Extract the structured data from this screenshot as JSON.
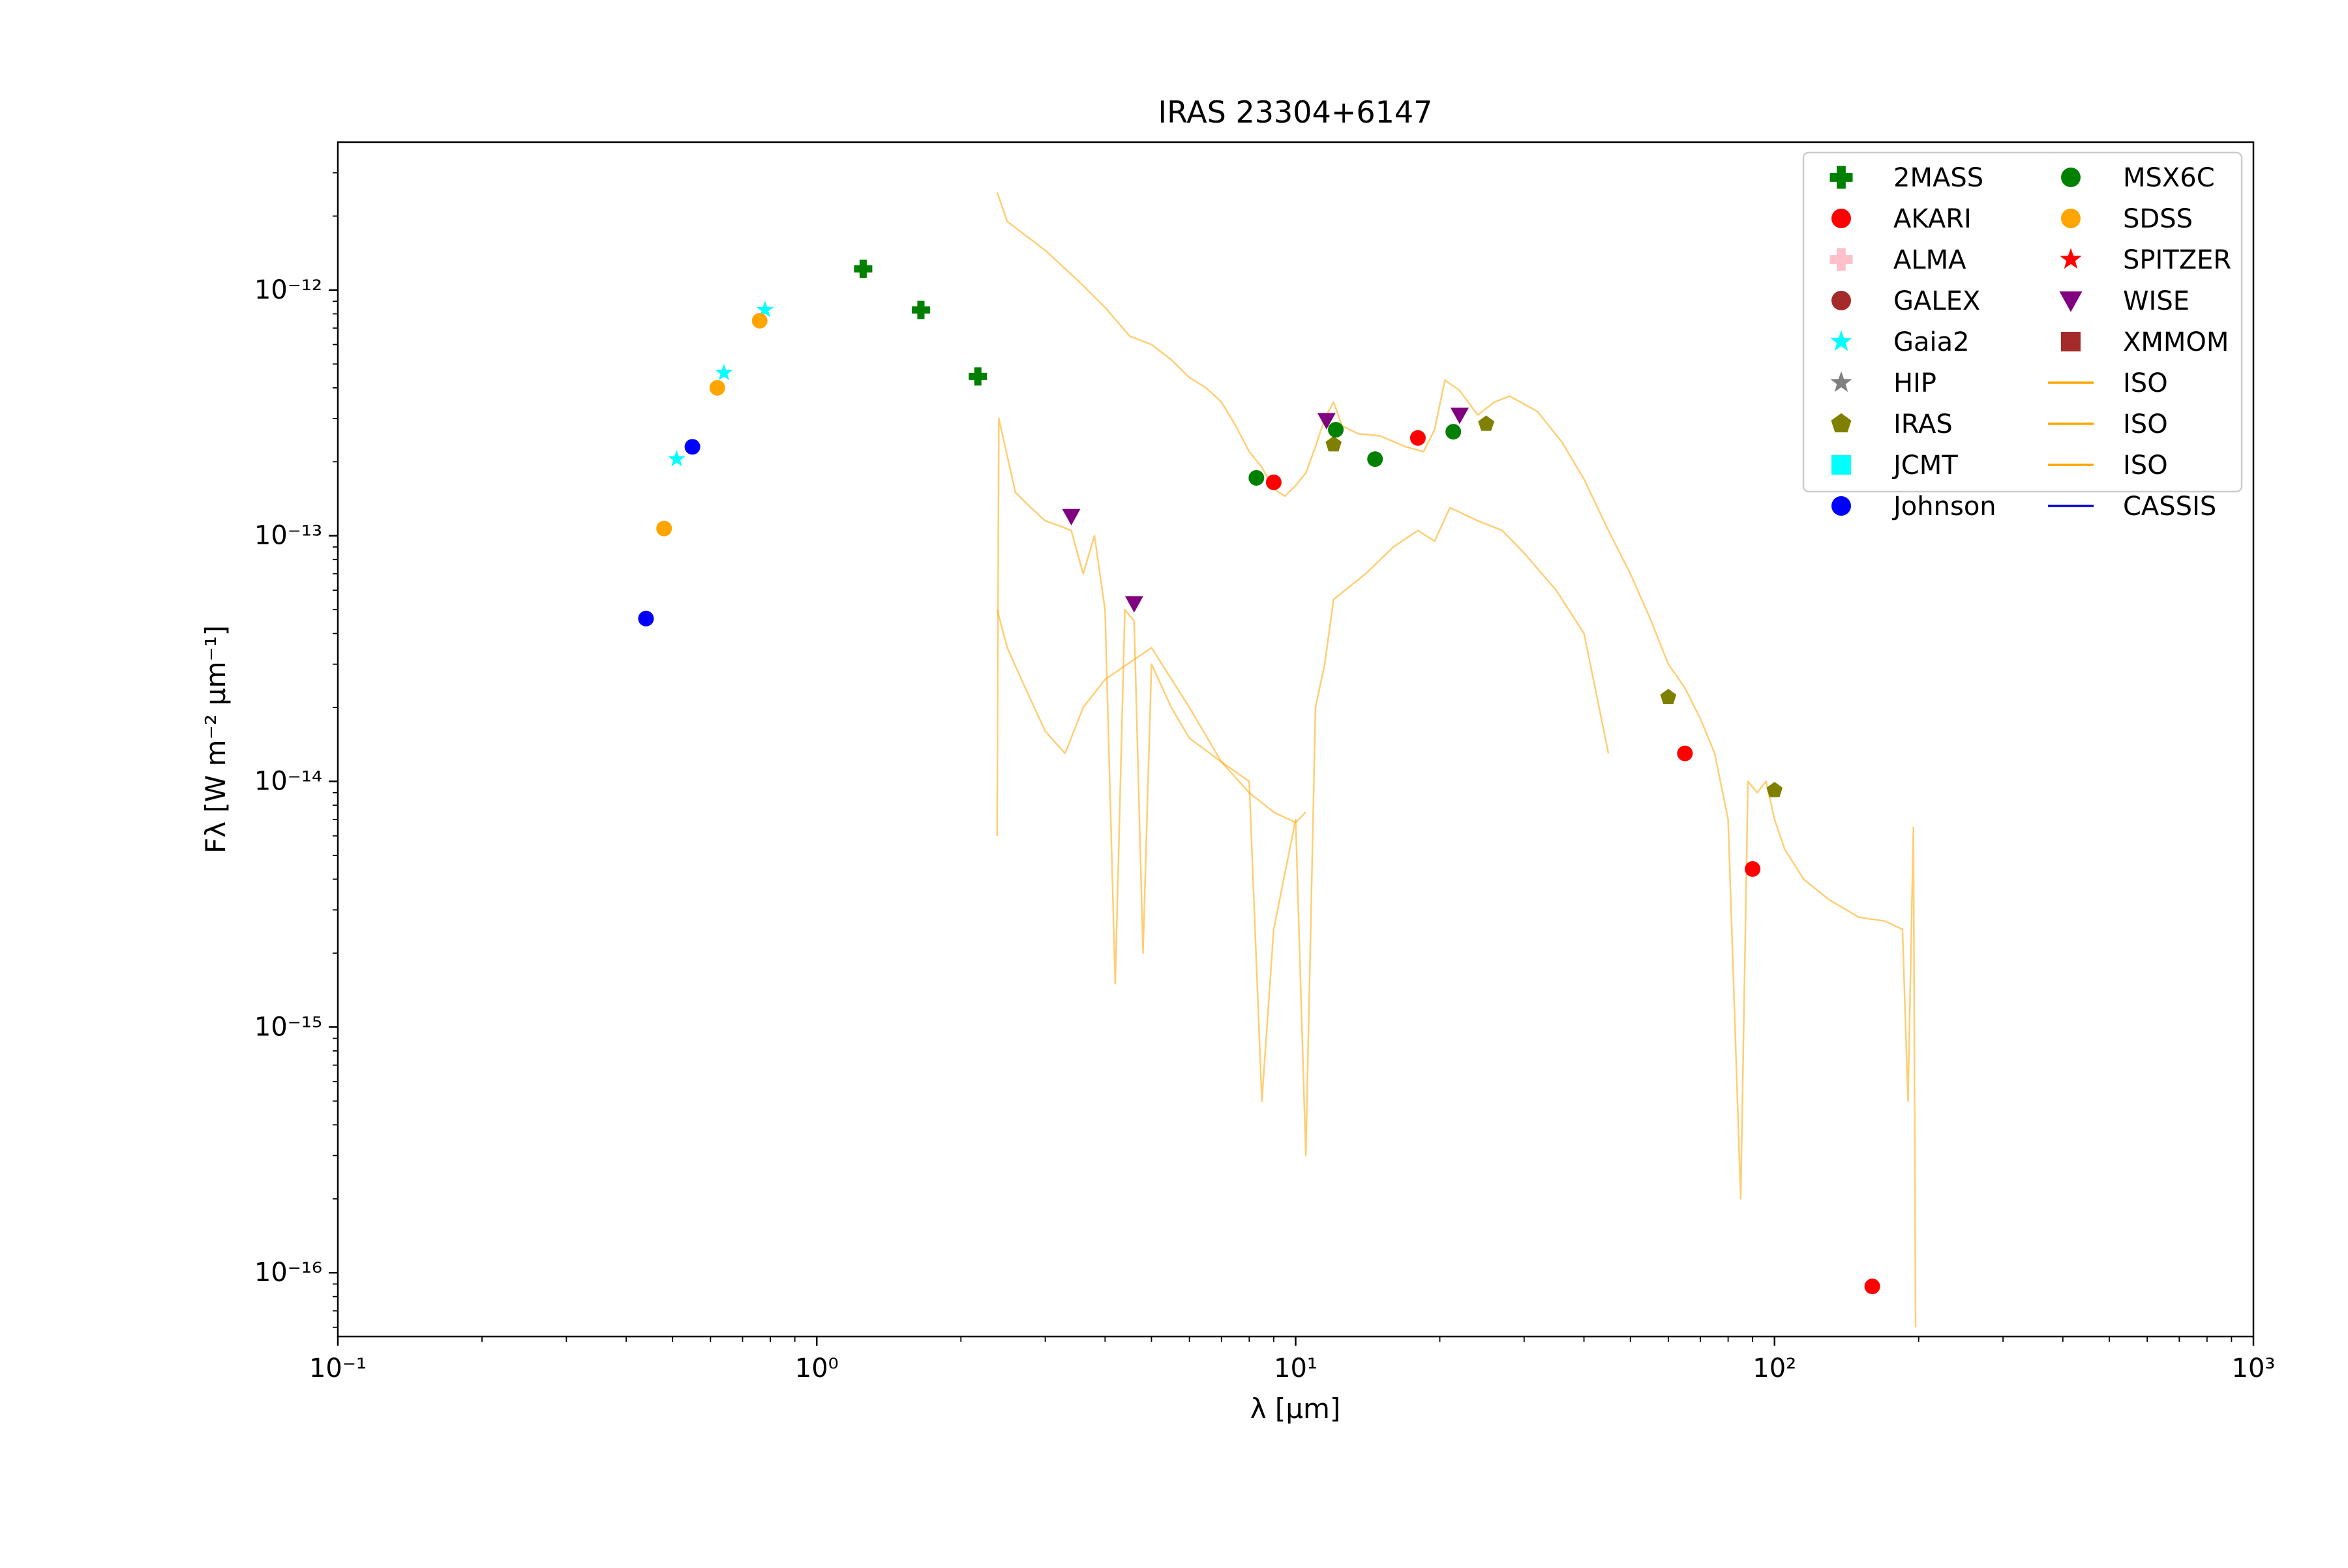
{
  "chart_data": {
    "type": "scatter",
    "title": "IRAS 23304+6147",
    "xlabel": "λ [μm]",
    "ylabel": "Fλ [W m⁻² μm⁻¹]",
    "xscale": "log",
    "yscale": "log",
    "xlim": [
      0.1,
      1000
    ],
    "ylim": [
      5.5e-17,
      4e-12
    ],
    "x_tick_labels": [
      "10⁻¹",
      "10⁰",
      "10¹",
      "10²",
      "10³"
    ],
    "y_tick_labels": [
      "10⁻¹⁶",
      "10⁻¹⁵",
      "10⁻¹⁴",
      "10⁻¹³",
      "10⁻¹²"
    ],
    "legend_location": "top-right",
    "legend_columns": 2,
    "grid": false,
    "series": [
      {
        "name": "2MASS",
        "marker": "plus",
        "color": "#008000",
        "points": [
          [
            1.25,
            1.22e-12
          ],
          [
            1.65,
            8.3e-13
          ],
          [
            2.17,
            4.45e-13
          ]
        ]
      },
      {
        "name": "AKARI",
        "marker": "circle",
        "color": "#ff0000",
        "points": [
          [
            9.0,
            1.65e-13
          ],
          [
            18.0,
            2.5e-13
          ],
          [
            65.0,
            1.3e-14
          ],
          [
            90.0,
            4.4e-15
          ],
          [
            160.0,
            8.8e-17
          ]
        ]
      },
      {
        "name": "ALMA",
        "marker": "plus",
        "color": "#ffc0cb",
        "points": []
      },
      {
        "name": "GALEX",
        "marker": "circle",
        "color": "#a52a2a",
        "points": []
      },
      {
        "name": "Gaia2",
        "marker": "star",
        "color": "#00ffff",
        "points": [
          [
            0.51,
            2.05e-13
          ],
          [
            0.64,
            4.6e-13
          ],
          [
            0.78,
            8.3e-13
          ]
        ]
      },
      {
        "name": "HIP",
        "marker": "star",
        "color": "#808080",
        "points": []
      },
      {
        "name": "IRAS",
        "marker": "pentagon",
        "color": "#808000",
        "points": [
          [
            12.0,
            2.35e-13
          ],
          [
            25.0,
            2.85e-13
          ],
          [
            60.0,
            2.2e-14
          ],
          [
            100.0,
            9.2e-15
          ]
        ]
      },
      {
        "name": "JCMT",
        "marker": "square",
        "color": "#00ffff",
        "points": []
      },
      {
        "name": "Johnson",
        "marker": "circle",
        "color": "#0000ff",
        "points": [
          [
            0.44,
            4.6e-14
          ],
          [
            0.55,
            2.3e-13
          ]
        ]
      },
      {
        "name": "MSX6C",
        "marker": "circle",
        "color": "#008000",
        "points": [
          [
            8.28,
            1.72e-13
          ],
          [
            12.13,
            2.7e-13
          ],
          [
            14.65,
            2.05e-13
          ],
          [
            21.34,
            2.65e-13
          ]
        ]
      },
      {
        "name": "SDSS",
        "marker": "circle",
        "color": "#ffa500",
        "points": [
          [
            0.48,
            1.07e-13
          ],
          [
            0.62,
            4e-13
          ],
          [
            0.76,
            7.5e-13
          ]
        ]
      },
      {
        "name": "SPITZER",
        "marker": "star",
        "color": "#ff0000",
        "points": []
      },
      {
        "name": "WISE",
        "marker": "triangle-down",
        "color": "#800080",
        "points": [
          [
            3.4,
            1.2e-13
          ],
          [
            4.6,
            5.3e-14
          ],
          [
            11.6,
            2.95e-13
          ],
          [
            22.0,
            3.1e-13
          ]
        ]
      },
      {
        "name": "XMMOM",
        "marker": "square",
        "color": "#a52a2a",
        "points": []
      },
      {
        "name": "ISO",
        "marker": "line",
        "color": "#ffa500",
        "points": [
          [
            2.38,
            2.5e-12
          ],
          [
            2.5,
            1.9e-12
          ],
          [
            3.0,
            1.45e-12
          ],
          [
            3.5,
            1.1e-12
          ],
          [
            4.0,
            8.5e-13
          ],
          [
            4.5,
            6.5e-13
          ],
          [
            5.0,
            6e-13
          ],
          [
            5.5,
            5.2e-13
          ],
          [
            6.0,
            4.4e-13
          ],
          [
            6.5,
            4e-13
          ],
          [
            7.0,
            3.5e-13
          ],
          [
            7.5,
            2.8e-13
          ],
          [
            8.0,
            2.2e-13
          ],
          [
            8.5,
            1.9e-13
          ],
          [
            9.0,
            1.55e-13
          ],
          [
            9.5,
            1.45e-13
          ],
          [
            10.0,
            1.6e-13
          ],
          [
            10.5,
            1.8e-13
          ],
          [
            11.0,
            2.3e-13
          ],
          [
            11.5,
            3e-13
          ],
          [
            12.0,
            3.5e-13
          ],
          [
            12.5,
            2.8e-13
          ],
          [
            13.5,
            2.6e-13
          ],
          [
            15.0,
            2.55e-13
          ],
          [
            17.0,
            2.3e-13
          ],
          [
            18.5,
            2.2e-13
          ],
          [
            19.5,
            2.7e-13
          ],
          [
            20.5,
            4.3e-13
          ],
          [
            22.0,
            3.9e-13
          ],
          [
            24.0,
            3.1e-13
          ],
          [
            26.0,
            3.5e-13
          ],
          [
            28.0,
            3.7e-13
          ],
          [
            32.0,
            3.2e-13
          ],
          [
            36.0,
            2.4e-13
          ],
          [
            40.0,
            1.7e-13
          ],
          [
            45.0,
            1.05e-13
          ],
          [
            50.0,
            7e-14
          ],
          [
            55.0,
            4.6e-14
          ],
          [
            60.0,
            3e-14
          ],
          [
            65.0,
            2.4e-14
          ],
          [
            70.0,
            1.8e-14
          ],
          [
            75.0,
            1.3e-14
          ],
          [
            80.0,
            7e-15
          ],
          [
            85.0,
            2e-16
          ],
          [
            88.0,
            1e-14
          ],
          [
            92.0,
            9e-15
          ],
          [
            96.0,
            1e-14
          ],
          [
            100.0,
            7e-15
          ],
          [
            105.0,
            5.3e-15
          ],
          [
            115.0,
            4e-15
          ],
          [
            130.0,
            3.3e-15
          ],
          [
            150.0,
            2.8e-15
          ],
          [
            170.0,
            2.7e-15
          ],
          [
            185.0,
            2.5e-15
          ],
          [
            190.0,
            5e-16
          ],
          [
            195.0,
            6.5e-15
          ],
          [
            197.0,
            6e-17
          ]
        ]
      },
      {
        "name": "ISO",
        "marker": "line",
        "color": "#ffa500",
        "points": [
          [
            2.38,
            6e-15
          ],
          [
            2.4,
            3e-13
          ],
          [
            2.6,
            1.5e-13
          ],
          [
            2.8,
            1.3e-13
          ],
          [
            3.0,
            1.15e-13
          ],
          [
            3.2,
            1.1e-13
          ],
          [
            3.4,
            1.05e-13
          ],
          [
            3.6,
            7e-14
          ],
          [
            3.8,
            1e-13
          ],
          [
            4.0,
            5e-14
          ],
          [
            4.2,
            1.5e-15
          ],
          [
            4.4,
            5e-14
          ],
          [
            4.6,
            4.5e-14
          ],
          [
            4.8,
            2e-15
          ],
          [
            5.0,
            3e-14
          ],
          [
            5.5,
            2e-14
          ],
          [
            6.0,
            1.5e-14
          ],
          [
            7.0,
            1.2e-14
          ],
          [
            8.0,
            1e-14
          ],
          [
            8.5,
            5e-16
          ],
          [
            9.0,
            2.5e-15
          ],
          [
            10.0,
            7e-15
          ],
          [
            10.5,
            3e-16
          ],
          [
            11.0,
            2e-14
          ],
          [
            11.5,
            3e-14
          ],
          [
            12.0,
            5.5e-14
          ],
          [
            14.0,
            7e-14
          ],
          [
            16.0,
            9e-14
          ],
          [
            18.0,
            1.05e-13
          ],
          [
            19.5,
            9.5e-14
          ],
          [
            21.0,
            1.3e-13
          ],
          [
            24.0,
            1.15e-13
          ],
          [
            27.0,
            1.05e-13
          ],
          [
            30.0,
            8.5e-14
          ],
          [
            35.0,
            6e-14
          ],
          [
            40.0,
            4e-14
          ],
          [
            45.0,
            1.3e-14
          ]
        ]
      },
      {
        "name": "ISO",
        "marker": "line",
        "color": "#ffa500",
        "points": [
          [
            2.38,
            5e-14
          ],
          [
            2.5,
            3.5e-14
          ],
          [
            2.7,
            2.5e-14
          ],
          [
            3.0,
            1.6e-14
          ],
          [
            3.3,
            1.3e-14
          ],
          [
            3.6,
            2e-14
          ],
          [
            4.0,
            2.6e-14
          ],
          [
            5.0,
            3.5e-14
          ],
          [
            6.0,
            2e-14
          ],
          [
            7.0,
            1.2e-14
          ],
          [
            8.0,
            9e-15
          ],
          [
            9.0,
            7.5e-15
          ],
          [
            10.0,
            6.8e-15
          ],
          [
            10.5,
            7.5e-15
          ]
        ]
      },
      {
        "name": "CASSIS",
        "marker": "line",
        "color": "#0000cd",
        "points": []
      }
    ]
  }
}
